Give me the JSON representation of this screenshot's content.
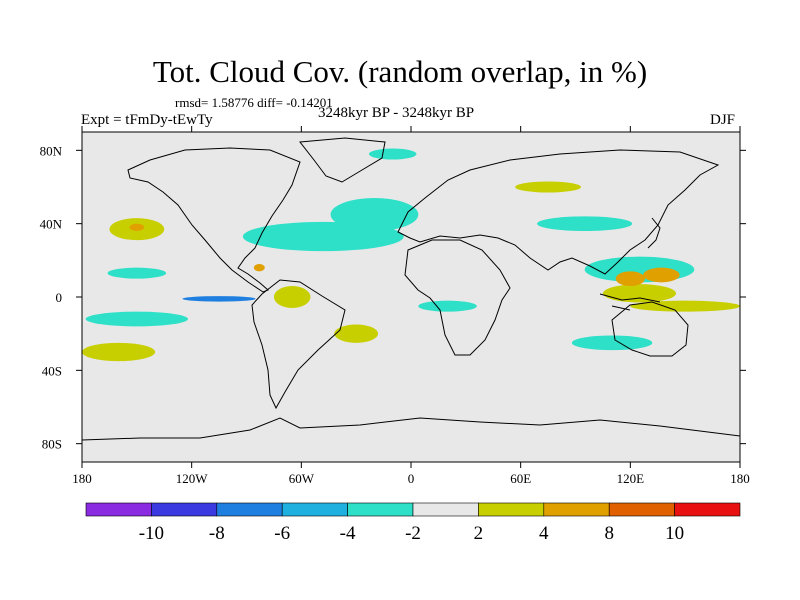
{
  "chart_data": {
    "type": "heatmap",
    "title": "Tot. Cloud Cov. (random overlap, in %)",
    "stats": "rmsd= 1.58776  diff= -0.14201",
    "left_label": "Expt = tFmDy-tEwTy",
    "center_label": "3248kyr BP - 3248kyr BP",
    "right_label": "DJF",
    "x_ticks": [
      {
        "value": -180,
        "label": "180"
      },
      {
        "value": -120,
        "label": "120W"
      },
      {
        "value": -60,
        "label": "60W"
      },
      {
        "value": 0,
        "label": "0"
      },
      {
        "value": 60,
        "label": "60E"
      },
      {
        "value": 120,
        "label": "120E"
      },
      {
        "value": 180,
        "label": "180"
      }
    ],
    "y_ticks": [
      {
        "value": 80,
        "label": "80N"
      },
      {
        "value": 40,
        "label": "40N"
      },
      {
        "value": 0,
        "label": "0"
      },
      {
        "value": -40,
        "label": "40S"
      },
      {
        "value": -80,
        "label": "80S"
      }
    ],
    "xlim": [
      -180,
      180
    ],
    "ylim": [
      -90,
      90
    ],
    "colorbar": {
      "levels": [
        "-10",
        "-8",
        "-6",
        "-4",
        "-2",
        "2",
        "4",
        "8",
        "10"
      ],
      "colors": [
        "#8a2be2",
        "#3a3ae0",
        "#1f7fe0",
        "#1fb0e0",
        "#2ee0c8",
        "#e8e8e8",
        "#c8cf00",
        "#e0a000",
        "#e06000",
        "#e81010"
      ]
    },
    "fill_color": "#e8e8e8",
    "anomalies": [
      {
        "lon": -150,
        "lat": -12,
        "rx": 28,
        "ry": 4,
        "class": "-4 to -2"
      },
      {
        "lon": -105,
        "lat": -1,
        "rx": 20,
        "ry": 1.5,
        "class": "-6 to -4"
      },
      {
        "lon": -48,
        "lat": 33,
        "rx": 44,
        "ry": 8,
        "class": "-4 to -2"
      },
      {
        "lon": -20,
        "lat": 45,
        "rx": 24,
        "ry": 9,
        "class": "-4 to -2"
      },
      {
        "lon": -10,
        "lat": 78,
        "rx": 13,
        "ry": 3,
        "class": "-4 to -2"
      },
      {
        "lon": -150,
        "lat": 13,
        "rx": 16,
        "ry": 3,
        "class": "-4 to -2"
      },
      {
        "lon": 125,
        "lat": 15,
        "rx": 30,
        "ry": 7,
        "class": "-4 to -2"
      },
      {
        "lon": 95,
        "lat": 40,
        "rx": 26,
        "ry": 4,
        "class": "-4 to -2"
      },
      {
        "lon": 110,
        "lat": -25,
        "rx": 22,
        "ry": 4,
        "class": "-4 to -2"
      },
      {
        "lon": 20,
        "lat": -5,
        "rx": 16,
        "ry": 3,
        "class": "-4 to -2"
      },
      {
        "lon": -150,
        "lat": 37,
        "rx": 15,
        "ry": 6,
        "class": "2 to 4"
      },
      {
        "lon": -160,
        "lat": -30,
        "rx": 20,
        "ry": 5,
        "class": "2 to 4"
      },
      {
        "lon": -30,
        "lat": -20,
        "rx": 12,
        "ry": 5,
        "class": "2 to 4"
      },
      {
        "lon": -65,
        "lat": 0,
        "rx": 10,
        "ry": 6,
        "class": "2 to 4"
      },
      {
        "lon": 125,
        "lat": 2,
        "rx": 20,
        "ry": 5,
        "class": "2 to 4"
      },
      {
        "lon": 150,
        "lat": -5,
        "rx": 30,
        "ry": 3,
        "class": "2 to 4"
      },
      {
        "lon": 75,
        "lat": 60,
        "rx": 18,
        "ry": 3,
        "class": "2 to 4"
      },
      {
        "lon": 120,
        "lat": 10,
        "rx": 8,
        "ry": 4,
        "class": "4 to 8"
      },
      {
        "lon": 137,
        "lat": 12,
        "rx": 10,
        "ry": 4,
        "class": "4 to 8"
      },
      {
        "lon": -150,
        "lat": 38,
        "rx": 4,
        "ry": 2,
        "class": "4 to 8"
      },
      {
        "lon": -83,
        "lat": 16,
        "rx": 3,
        "ry": 2,
        "class": "4 to 8"
      }
    ]
  }
}
